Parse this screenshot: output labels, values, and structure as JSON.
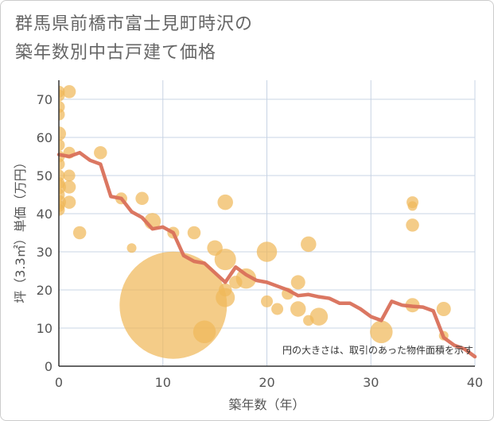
{
  "title_lines": [
    "群馬県前橋市富士見町時沢の",
    "築年数別中古戸建て価格"
  ],
  "chart_data": {
    "type": "scatter",
    "title": "群馬県前橋市富士見町時沢の築年数別中古戸建て価格",
    "xlabel": "築年数（年）",
    "ylabel": "坪（3.3㎡）単価（万円）",
    "xlim": [
      0,
      40
    ],
    "ylim": [
      0,
      75
    ],
    "xticks": [
      0,
      10,
      20,
      30,
      40
    ],
    "yticks": [
      0,
      10,
      20,
      30,
      40,
      50,
      60,
      70
    ],
    "grid": true,
    "note": "円の大きさは、取引のあった物件面積を示す",
    "colors": {
      "bubble": "#f0b85a",
      "line": "#d9705a",
      "grid": "#c8d4e4",
      "axis": "#333333"
    },
    "bubbles": [
      {
        "x": 0,
        "y": 72,
        "s": 1
      },
      {
        "x": 0,
        "y": 71,
        "s": 1
      },
      {
        "x": 0,
        "y": 68,
        "s": 1
      },
      {
        "x": 0,
        "y": 66,
        "s": 1
      },
      {
        "x": 0,
        "y": 61,
        "s": 1.2
      },
      {
        "x": 0,
        "y": 58,
        "s": 1
      },
      {
        "x": 0,
        "y": 55,
        "s": 1
      },
      {
        "x": 0,
        "y": 53,
        "s": 1
      },
      {
        "x": 0,
        "y": 50,
        "s": 1
      },
      {
        "x": 0,
        "y": 48,
        "s": 1
      },
      {
        "x": 0,
        "y": 47,
        "s": 1.2
      },
      {
        "x": 0,
        "y": 45,
        "s": 1
      },
      {
        "x": 0,
        "y": 43,
        "s": 1.2
      },
      {
        "x": 0,
        "y": 42,
        "s": 1
      },
      {
        "x": 0,
        "y": 41,
        "s": 1
      },
      {
        "x": 1,
        "y": 72,
        "s": 1.1
      },
      {
        "x": 1,
        "y": 56,
        "s": 1
      },
      {
        "x": 1,
        "y": 50,
        "s": 1
      },
      {
        "x": 1,
        "y": 47,
        "s": 1.1
      },
      {
        "x": 1,
        "y": 43,
        "s": 1.1
      },
      {
        "x": 2,
        "y": 35,
        "s": 1.1
      },
      {
        "x": 4,
        "y": 56,
        "s": 1.1
      },
      {
        "x": 6,
        "y": 44,
        "s": 1
      },
      {
        "x": 7,
        "y": 31,
        "s": 0.8
      },
      {
        "x": 8,
        "y": 44,
        "s": 1.1
      },
      {
        "x": 9,
        "y": 38,
        "s": 1.4
      },
      {
        "x": 11,
        "y": 35,
        "s": 1
      },
      {
        "x": 11,
        "y": 16,
        "s": 9
      },
      {
        "x": 13,
        "y": 35,
        "s": 1.1
      },
      {
        "x": 14,
        "y": 9,
        "s": 1.9
      },
      {
        "x": 15,
        "y": 31,
        "s": 1.3
      },
      {
        "x": 16,
        "y": 43,
        "s": 1.3
      },
      {
        "x": 16,
        "y": 28,
        "s": 1.8
      },
      {
        "x": 16,
        "y": 20,
        "s": 1.1
      },
      {
        "x": 16,
        "y": 18,
        "s": 1.6
      },
      {
        "x": 17,
        "y": 22,
        "s": 1.1
      },
      {
        "x": 18,
        "y": 23,
        "s": 1.7
      },
      {
        "x": 20,
        "y": 30,
        "s": 1.7
      },
      {
        "x": 20,
        "y": 17,
        "s": 1
      },
      {
        "x": 21,
        "y": 15,
        "s": 1
      },
      {
        "x": 22,
        "y": 19,
        "s": 1
      },
      {
        "x": 23,
        "y": 22,
        "s": 1.2
      },
      {
        "x": 23,
        "y": 15,
        "s": 1.3
      },
      {
        "x": 24,
        "y": 32,
        "s": 1.3
      },
      {
        "x": 24,
        "y": 12,
        "s": 0.9
      },
      {
        "x": 25,
        "y": 13,
        "s": 1.5
      },
      {
        "x": 31,
        "y": 9,
        "s": 1.9
      },
      {
        "x": 34,
        "y": 43,
        "s": 1
      },
      {
        "x": 34,
        "y": 42,
        "s": 0.8
      },
      {
        "x": 34,
        "y": 37,
        "s": 1.1
      },
      {
        "x": 34,
        "y": 16,
        "s": 1.2
      },
      {
        "x": 37,
        "y": 15,
        "s": 1.2
      },
      {
        "x": 37,
        "y": 8,
        "s": 0.8
      }
    ],
    "trend": {
      "x": [
        0,
        1,
        2,
        3,
        4,
        5,
        6,
        7,
        8,
        9,
        10,
        11,
        12,
        13,
        14,
        15,
        16,
        17,
        18,
        19,
        20,
        21,
        22,
        23,
        24,
        25,
        26,
        27,
        28,
        29,
        30,
        31,
        32,
        33,
        34,
        35,
        36,
        37,
        38,
        39,
        40
      ],
      "y": [
        55.5,
        55,
        56,
        54,
        53,
        44.5,
        44,
        40.5,
        39,
        36,
        36.5,
        35,
        29,
        27.5,
        27,
        24.5,
        22,
        26,
        24,
        22.5,
        22,
        21,
        20,
        18.5,
        18.8,
        18.2,
        17.8,
        16.5,
        16.5,
        15,
        13,
        12,
        17,
        16,
        15.7,
        15.5,
        14.5,
        7.5,
        5.5,
        4.5,
        2.5
      ]
    }
  }
}
